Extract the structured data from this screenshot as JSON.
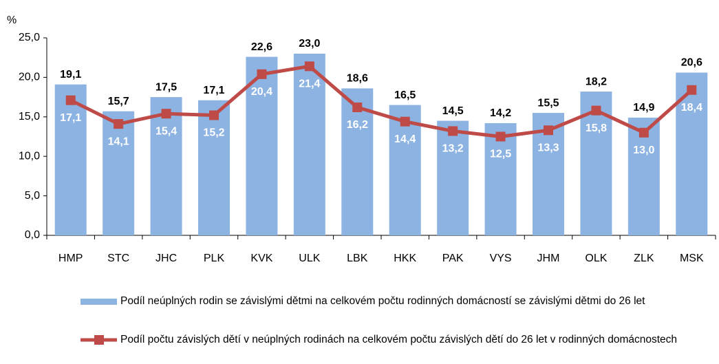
{
  "chart_data": {
    "type": "bar",
    "y_label": "%",
    "categories": [
      "HMP",
      "STC",
      "JHC",
      "PLK",
      "KVK",
      "ULK",
      "LBK",
      "HKK",
      "PAK",
      "VYS",
      "JHM",
      "OLK",
      "ZLK",
      "MSK"
    ],
    "series": [
      {
        "name": "Podíl neúplných rodin se závislými dětmi na celkovém počtu rodinných domácností se závislými dětmi do 26 let",
        "type": "bar",
        "color": "#8db3e2",
        "values": [
          19.1,
          15.7,
          17.5,
          17.1,
          22.6,
          23.0,
          18.6,
          16.5,
          14.5,
          14.2,
          15.5,
          18.2,
          14.9,
          20.6
        ],
        "value_labels": [
          "19,1",
          "15,7",
          "17,5",
          "17,1",
          "22,6",
          "23,0",
          "18,6",
          "16,5",
          "14,5",
          "14,2",
          "15,5",
          "18,2",
          "14,9",
          "20,6"
        ]
      },
      {
        "name": "Podíl počtu závislých dětí v neúplných rodinách na celkovém počtu závislých dětí do 26 let v rodinných domácnostech",
        "type": "line",
        "color": "#be4b48",
        "values": [
          17.1,
          14.1,
          15.4,
          15.2,
          20.4,
          21.4,
          16.2,
          14.4,
          13.2,
          12.5,
          13.3,
          15.8,
          13.0,
          18.4
        ],
        "value_labels": [
          "17,1",
          "14,1",
          "15,4",
          "15,2",
          "20,4",
          "21,4",
          "16,2",
          "14,4",
          "13,2",
          "12,5",
          "13,3",
          "15,8",
          "13,0",
          "18,4"
        ]
      }
    ],
    "ylim": [
      0,
      25
    ],
    "yticks": [
      {
        "value": 0,
        "label": "0,0"
      },
      {
        "value": 5,
        "label": "5,0"
      },
      {
        "value": 10,
        "label": "10,0"
      },
      {
        "value": 15,
        "label": "15,0"
      },
      {
        "value": 20,
        "label": "20,0"
      },
      {
        "value": 25,
        "label": "25,0"
      }
    ],
    "grid": false
  }
}
